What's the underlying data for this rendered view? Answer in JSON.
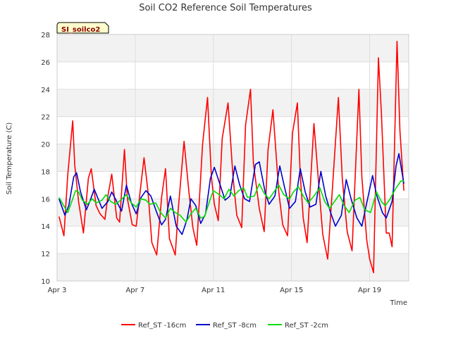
{
  "chart_data": {
    "type": "line",
    "title": "Soil CO2 Reference Soil Temperatures",
    "xlabel": "Time",
    "ylabel": "Soil Temperature (C)",
    "site_badge": "SI_soilco2",
    "xlim": [
      0,
      18.0
    ],
    "ylim": [
      10,
      28
    ],
    "yticks": [
      10,
      12,
      14,
      16,
      18,
      20,
      22,
      24,
      26,
      28
    ],
    "xticks": [
      {
        "x": 0,
        "label": "Apr 3"
      },
      {
        "x": 4,
        "label": "Apr 7"
      },
      {
        "x": 8,
        "label": "Apr 11"
      },
      {
        "x": 12,
        "label": "Apr 15"
      },
      {
        "x": 16,
        "label": "Apr 19"
      }
    ],
    "grid": true,
    "banded_background": true,
    "legend_position": "bottom",
    "series": [
      {
        "name": "Ref_ST -16cm",
        "color": "#ff0000",
        "x": [
          0.1,
          0.35,
          0.55,
          0.8,
          0.9,
          1.1,
          1.35,
          1.6,
          1.75,
          2.0,
          2.2,
          2.45,
          2.6,
          2.8,
          3.05,
          3.2,
          3.45,
          3.6,
          3.85,
          4.05,
          4.25,
          4.45,
          4.65,
          4.85,
          5.1,
          5.35,
          5.55,
          5.75,
          6.05,
          6.2,
          6.5,
          6.75,
          6.95,
          7.15,
          7.45,
          7.7,
          7.9,
          8.05,
          8.25,
          8.45,
          8.75,
          9.0,
          9.2,
          9.45,
          9.65,
          9.9,
          10.05,
          10.35,
          10.6,
          10.8,
          11.05,
          11.35,
          11.55,
          11.8,
          12.05,
          12.3,
          12.45,
          12.6,
          12.8,
          13.15,
          13.45,
          13.6,
          13.85,
          14.1,
          14.4,
          14.6,
          14.85,
          15.1,
          15.45,
          15.6,
          15.85,
          16.0,
          16.2,
          16.45,
          16.6,
          16.85,
          17.0,
          17.15,
          17.4,
          17.55,
          17.75
        ],
        "values": [
          14.7,
          13.3,
          17.8,
          21.7,
          18.5,
          15.8,
          13.5,
          17.5,
          18.2,
          15.5,
          14.9,
          14.5,
          16.2,
          17.8,
          14.6,
          14.3,
          19.6,
          16.0,
          14.1,
          14.0,
          16.5,
          19.0,
          16.6,
          12.8,
          11.9,
          16.1,
          18.2,
          13.1,
          11.9,
          15.2,
          20.2,
          16.5,
          13.9,
          12.6,
          20.0,
          23.4,
          17.6,
          15.6,
          14.4,
          20.4,
          23.0,
          17.7,
          14.8,
          13.9,
          21.4,
          24.0,
          18.6,
          15.3,
          13.6,
          19.6,
          22.5,
          16.5,
          14.1,
          13.3,
          20.8,
          23.0,
          17.7,
          14.6,
          12.8,
          21.5,
          16.0,
          13.4,
          11.6,
          16.9,
          23.4,
          17.5,
          13.6,
          12.2,
          24.0,
          17.6,
          13.0,
          11.6,
          10.6,
          26.3,
          22.3,
          13.5,
          13.5,
          12.5,
          27.5,
          21.0,
          16.6
        ]
      },
      {
        "name": "Ref_ST -8cm",
        "color": "#0000cc",
        "x": [
          0.1,
          0.4,
          0.6,
          0.85,
          1.0,
          1.2,
          1.5,
          1.7,
          1.9,
          2.1,
          2.3,
          2.6,
          2.8,
          3.05,
          3.3,
          3.55,
          3.8,
          4.05,
          4.3,
          4.55,
          4.8,
          5.1,
          5.35,
          5.55,
          5.8,
          6.1,
          6.4,
          6.65,
          6.85,
          7.1,
          7.35,
          7.6,
          7.85,
          8.05,
          8.35,
          8.6,
          8.85,
          9.1,
          9.35,
          9.6,
          9.85,
          10.15,
          10.35,
          10.65,
          10.85,
          11.15,
          11.4,
          11.65,
          11.9,
          12.2,
          12.45,
          12.7,
          12.95,
          13.25,
          13.5,
          13.75,
          14.0,
          14.25,
          14.55,
          14.8,
          15.05,
          15.35,
          15.6,
          15.85,
          16.15,
          16.35,
          16.65,
          16.85,
          17.15,
          17.35,
          17.5,
          17.75
        ],
        "values": [
          16.0,
          14.8,
          15.5,
          17.6,
          17.9,
          16.5,
          15.2,
          15.9,
          16.7,
          16.0,
          15.3,
          15.8,
          16.5,
          15.8,
          15.1,
          17.0,
          15.7,
          14.9,
          16.1,
          16.6,
          16.2,
          15.0,
          14.1,
          14.5,
          16.2,
          14.0,
          13.4,
          14.5,
          16.0,
          15.5,
          14.2,
          14.9,
          17.5,
          18.3,
          17.0,
          15.9,
          16.2,
          18.4,
          17.0,
          16.0,
          15.8,
          18.5,
          18.7,
          16.5,
          15.6,
          16.2,
          18.4,
          16.8,
          15.3,
          15.8,
          18.2,
          16.5,
          15.4,
          15.6,
          18.0,
          16.2,
          15.0,
          14.0,
          14.8,
          17.4,
          16.0,
          14.6,
          14.0,
          15.7,
          17.7,
          16.3,
          15.0,
          14.6,
          15.8,
          18.4,
          19.3,
          17.1
        ]
      },
      {
        "name": "Ref_ST -2cm",
        "color": "#00dd00",
        "x": [
          0.1,
          0.3,
          0.55,
          0.75,
          0.95,
          1.1,
          1.3,
          1.55,
          1.8,
          2.0,
          2.3,
          2.5,
          2.75,
          3.0,
          3.25,
          3.55,
          3.8,
          4.05,
          4.3,
          4.55,
          4.75,
          5.05,
          5.3,
          5.55,
          5.8,
          6.05,
          6.3,
          6.6,
          6.85,
          7.1,
          7.35,
          7.55,
          7.8,
          8.0,
          8.3,
          8.55,
          8.8,
          9.05,
          9.3,
          9.55,
          9.75,
          10.1,
          10.35,
          10.6,
          10.85,
          11.1,
          11.35,
          11.6,
          11.9,
          12.1,
          12.35,
          12.6,
          12.85,
          13.15,
          13.45,
          13.7,
          13.95,
          14.2,
          14.45,
          14.7,
          14.95,
          15.25,
          15.5,
          15.75,
          16.05,
          16.35,
          16.6,
          16.8,
          17.05,
          17.35,
          17.6,
          17.75
        ],
        "values": [
          16.1,
          15.6,
          15.0,
          15.8,
          16.6,
          16.5,
          15.9,
          15.6,
          16.0,
          15.7,
          15.9,
          16.3,
          15.8,
          15.6,
          15.9,
          16.3,
          15.7,
          15.4,
          16.0,
          15.9,
          15.6,
          15.7,
          15.0,
          14.6,
          15.3,
          15.0,
          14.8,
          14.3,
          14.9,
          15.3,
          14.6,
          14.7,
          15.8,
          16.6,
          16.3,
          16.0,
          16.7,
          16.2,
          16.6,
          16.8,
          16.1,
          16.2,
          17.1,
          16.4,
          16.0,
          16.5,
          17.0,
          16.3,
          16.0,
          16.5,
          16.9,
          16.2,
          15.7,
          16.2,
          16.8,
          15.8,
          15.3,
          15.8,
          16.3,
          15.5,
          15.0,
          15.9,
          16.1,
          15.2,
          15.0,
          16.5,
          15.8,
          15.5,
          16.0,
          16.8,
          17.3,
          17.3
        ]
      }
    ]
  }
}
